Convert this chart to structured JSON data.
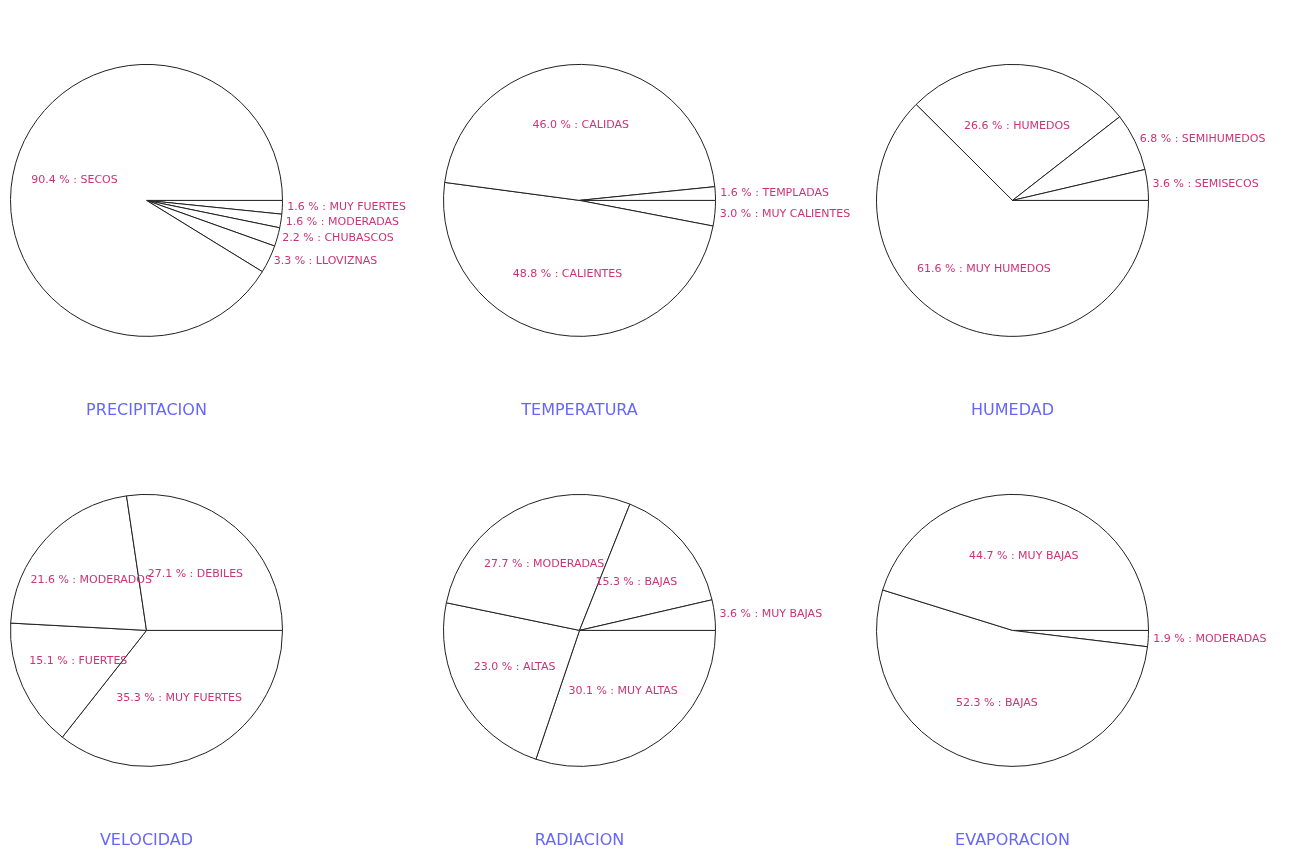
{
  "chart_data": [
    {
      "type": "pie",
      "title": "PRECIPITACION",
      "categories": [
        "MUY FUERTES",
        "MODERADAS",
        "CHUBASCOS",
        "LLOVIZNAS",
        "SECOS"
      ],
      "values": [
        1.6,
        1.6,
        2.2,
        3.3,
        90.4
      ],
      "colors": [
        "#ffffff",
        "#ffffff",
        "#ffffff",
        "#ffffff",
        "#ffffff"
      ],
      "value_labels": [
        "1.6 %",
        "1.6 %",
        "2.2 %",
        "3.3 %",
        "90.4 %"
      ],
      "legend": false
    },
    {
      "type": "pie",
      "title": "TEMPERATURA",
      "categories": [
        "MUY CALIENTES",
        "CALIENTES",
        "CALIDAS",
        "TEMPLADAS"
      ],
      "values": [
        3.0,
        48.8,
        46.0,
        1.6
      ],
      "colors": [
        "#ffffff",
        "#ffffff",
        "#ffffff",
        "#ffffff"
      ],
      "value_labels": [
        "3.0 %",
        "48.8 %",
        "46.0 %",
        "1.6 %"
      ],
      "legend": false
    },
    {
      "type": "pie",
      "title": "HUMEDAD",
      "categories": [
        "MUY HUMEDOS",
        "HUMEDOS",
        "SEMIHUMEDOS",
        "SEMISECOS"
      ],
      "values": [
        61.6,
        26.6,
        6.8,
        3.6
      ],
      "colors": [
        "#ffffff",
        "#ffffff",
        "#ffffff",
        "#ffffff"
      ],
      "value_labels": [
        "61.6 %",
        "26.6 %",
        "6.8 %",
        "3.6 %"
      ],
      "legend": false
    },
    {
      "type": "pie",
      "title": "VELOCIDAD",
      "categories": [
        "MUY FUERTES",
        "FUERTES",
        "MODERADOS",
        "DEBILES"
      ],
      "values": [
        35.3,
        15.1,
        21.6,
        27.1
      ],
      "colors": [
        "#ffffff",
        "#ffffff",
        "#ffffff",
        "#ffffff"
      ],
      "value_labels": [
        "35.3 %",
        "15.1 %",
        "21.6 %",
        "27.1 %"
      ],
      "legend": false
    },
    {
      "type": "pie",
      "title": "RADIACION",
      "categories": [
        "MUY ALTAS",
        "ALTAS",
        "MODERADAS",
        "BAJAS",
        "MUY BAJAS"
      ],
      "values": [
        30.1,
        23.0,
        27.7,
        15.3,
        3.6
      ],
      "colors": [
        "#ffffff",
        "#ffffff",
        "#ffffff",
        "#ffffff",
        "#ffffff"
      ],
      "value_labels": [
        "30.1 %",
        "23.0 %",
        "27.7 %",
        "15.3 %",
        "3.6 %"
      ],
      "legend": false
    },
    {
      "type": "pie",
      "title": "EVAPORACION",
      "categories": [
        "MODERADAS",
        "BAJAS",
        "MUY BAJAS"
      ],
      "values": [
        1.9,
        52.3,
        44.7
      ],
      "colors": [
        "#ffffff",
        "#ffffff",
        "#ffffff"
      ],
      "value_labels": [
        "1.9 %",
        "52.3 %",
        "44.7 %"
      ],
      "legend": false
    }
  ]
}
